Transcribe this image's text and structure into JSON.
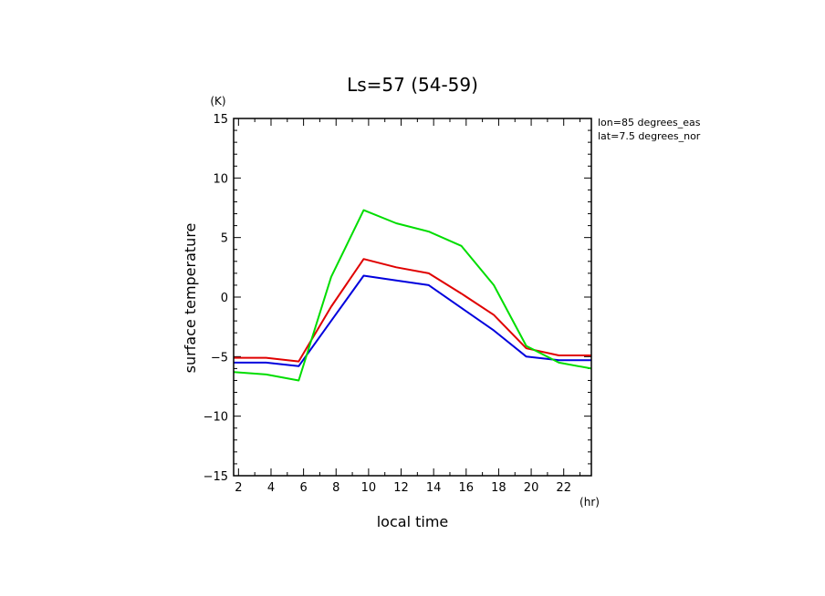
{
  "chart_data": {
    "type": "line",
    "title": "Ls=57 (54-59)",
    "xlabel": "local time",
    "ylabel": "surface temperature",
    "x_unit": "(hr)",
    "y_unit": "(K)",
    "annotations": [
      "lon=85 degrees_eas",
      "lat=7.5 degrees_nor"
    ],
    "xlim": [
      1.7,
      23.7
    ],
    "ylim": [
      -15,
      15
    ],
    "x_ticks": [
      2,
      4,
      6,
      8,
      10,
      12,
      14,
      16,
      18,
      20,
      22
    ],
    "y_ticks": [
      15,
      10,
      5,
      0,
      -5,
      -10,
      -15
    ],
    "x": [
      1.7,
      3.7,
      5.7,
      7.7,
      9.7,
      11.7,
      13.7,
      15.7,
      17.7,
      19.7,
      21.7,
      23.7
    ],
    "series": [
      {
        "color": "#e00000",
        "values": [
          -5.1,
          -5.1,
          -5.4,
          -0.8,
          3.2,
          2.5,
          2.0,
          0.3,
          -1.5,
          -4.3,
          -4.9,
          -4.9
        ]
      },
      {
        "color": "#0000dd",
        "values": [
          -5.5,
          -5.5,
          -5.8,
          -2.0,
          1.8,
          1.4,
          1.0,
          -0.9,
          -2.8,
          -5.0,
          -5.3,
          -5.3
        ]
      },
      {
        "color": "#00dd00",
        "values": [
          -6.3,
          -6.5,
          -7.0,
          1.7,
          7.3,
          6.2,
          5.5,
          4.3,
          1.0,
          -4.1,
          -5.5,
          -6.0
        ]
      }
    ]
  }
}
